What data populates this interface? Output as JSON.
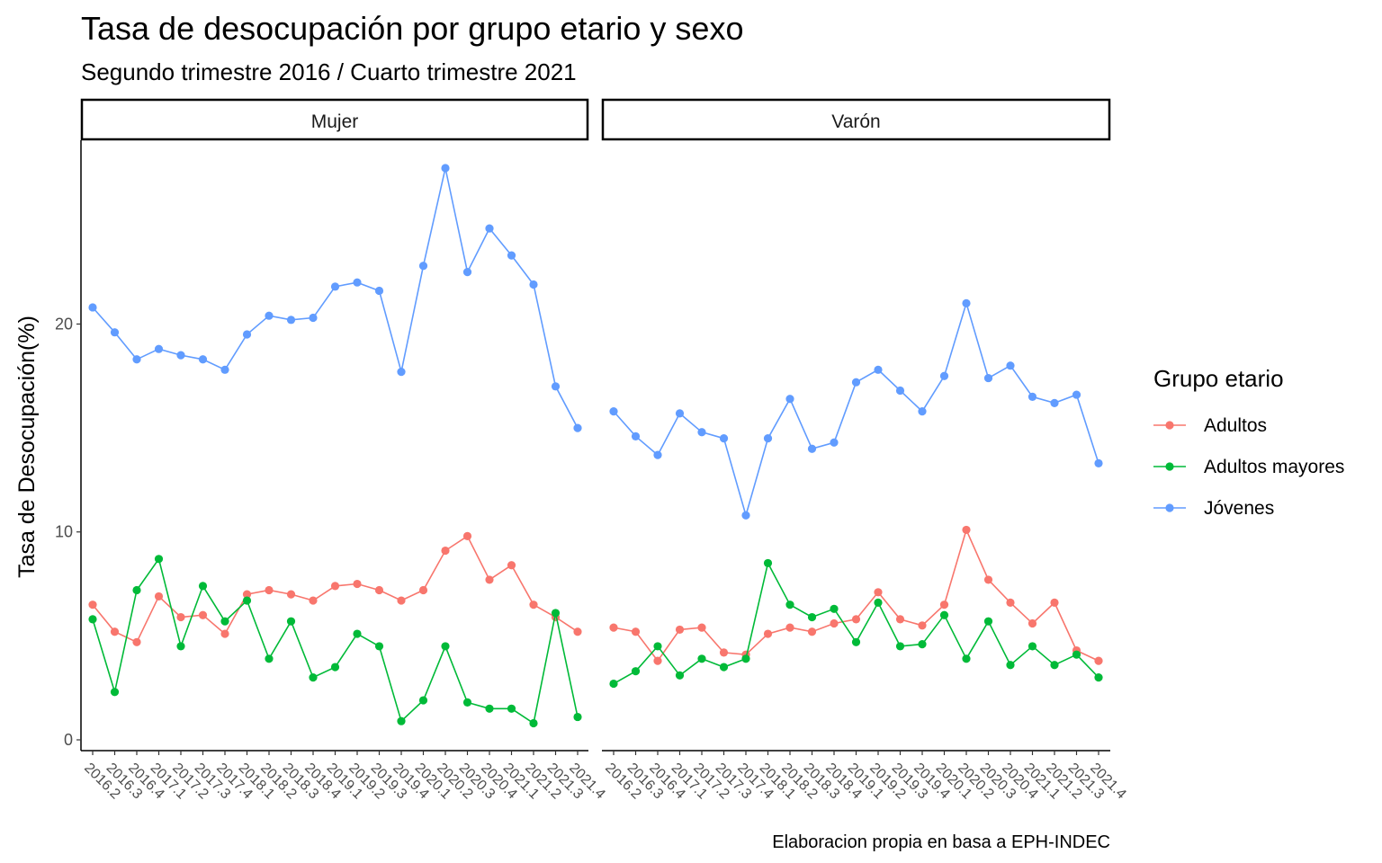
{
  "chart_data": {
    "type": "line",
    "title": "Tasa de desocupación por grupo etario y sexo",
    "subtitle": "Segundo trimestre 2016 / Cuarto trimestre 2021",
    "ylabel": "Tasa de Desocupación(%)",
    "xlabel": "",
    "caption": "Elaboracion propia en basa a EPH-INDEC",
    "ylim": [
      0,
      27.5
    ],
    "yticks": [
      0,
      10,
      20
    ],
    "categories": [
      "2016.2",
      "2016.3",
      "2016.4",
      "2017.1",
      "2017.2",
      "2017.3",
      "2017.4",
      "2018.1",
      "2018.2",
      "2018.3",
      "2018.4",
      "2019.1",
      "2019.2",
      "2019.3",
      "2019.4",
      "2020.1",
      "2020.2",
      "2020.3",
      "2020.4",
      "2021.1",
      "2021.2",
      "2021.3",
      "2021.4"
    ],
    "legend": {
      "title": "Grupo etario",
      "position": "right",
      "entries": [
        {
          "name": "Adultos",
          "color": "#F8766D"
        },
        {
          "name": "Adultos mayores",
          "color": "#00BA38"
        },
        {
          "name": "Jóvenes",
          "color": "#619CFF"
        }
      ]
    },
    "facets": [
      {
        "label": "Mujer",
        "series": [
          {
            "name": "Adultos",
            "values": [
              6.5,
              5.2,
              4.7,
              6.9,
              5.9,
              6.0,
              5.1,
              7.0,
              7.2,
              7.0,
              6.7,
              7.4,
              7.5,
              7.2,
              6.7,
              7.2,
              9.1,
              9.8,
              7.7,
              8.4,
              6.5,
              5.9,
              5.2
            ]
          },
          {
            "name": "Adultos mayores",
            "values": [
              5.8,
              2.3,
              7.2,
              8.7,
              4.5,
              7.4,
              5.7,
              6.7,
              3.9,
              5.7,
              3.0,
              3.5,
              5.1,
              4.5,
              0.9,
              1.9,
              4.5,
              1.8,
              1.5,
              1.5,
              0.8,
              6.1,
              1.1
            ]
          },
          {
            "name": "Jóvenes",
            "values": [
              20.8,
              19.6,
              18.3,
              18.8,
              18.5,
              18.3,
              17.8,
              19.5,
              20.4,
              20.2,
              20.3,
              21.8,
              22.0,
              21.6,
              17.7,
              22.8,
              27.5,
              22.5,
              24.6,
              23.3,
              21.9,
              17.0,
              15.0
            ]
          }
        ]
      },
      {
        "label": "Varón",
        "series": [
          {
            "name": "Adultos",
            "values": [
              5.4,
              5.2,
              3.8,
              5.3,
              5.4,
              4.2,
              4.1,
              5.1,
              5.4,
              5.2,
              5.6,
              5.8,
              7.1,
              5.8,
              5.5,
              6.5,
              10.1,
              7.7,
              6.6,
              5.6,
              6.6,
              4.3,
              3.8
            ]
          },
          {
            "name": "Adultos mayores",
            "values": [
              2.7,
              3.3,
              4.5,
              3.1,
              3.9,
              3.5,
              3.9,
              8.5,
              6.5,
              5.9,
              6.3,
              4.7,
              6.6,
              4.5,
              4.6,
              6.0,
              3.9,
              5.7,
              3.6,
              4.5,
              3.6,
              4.1,
              3.0
            ]
          },
          {
            "name": "Jóvenes",
            "values": [
              15.8,
              14.6,
              13.7,
              15.7,
              14.8,
              14.5,
              10.8,
              14.5,
              16.4,
              14.0,
              14.3,
              17.2,
              17.8,
              16.8,
              15.8,
              17.5,
              21.0,
              17.4,
              18.0,
              16.5,
              16.2,
              16.6,
              13.3
            ]
          }
        ]
      }
    ]
  }
}
